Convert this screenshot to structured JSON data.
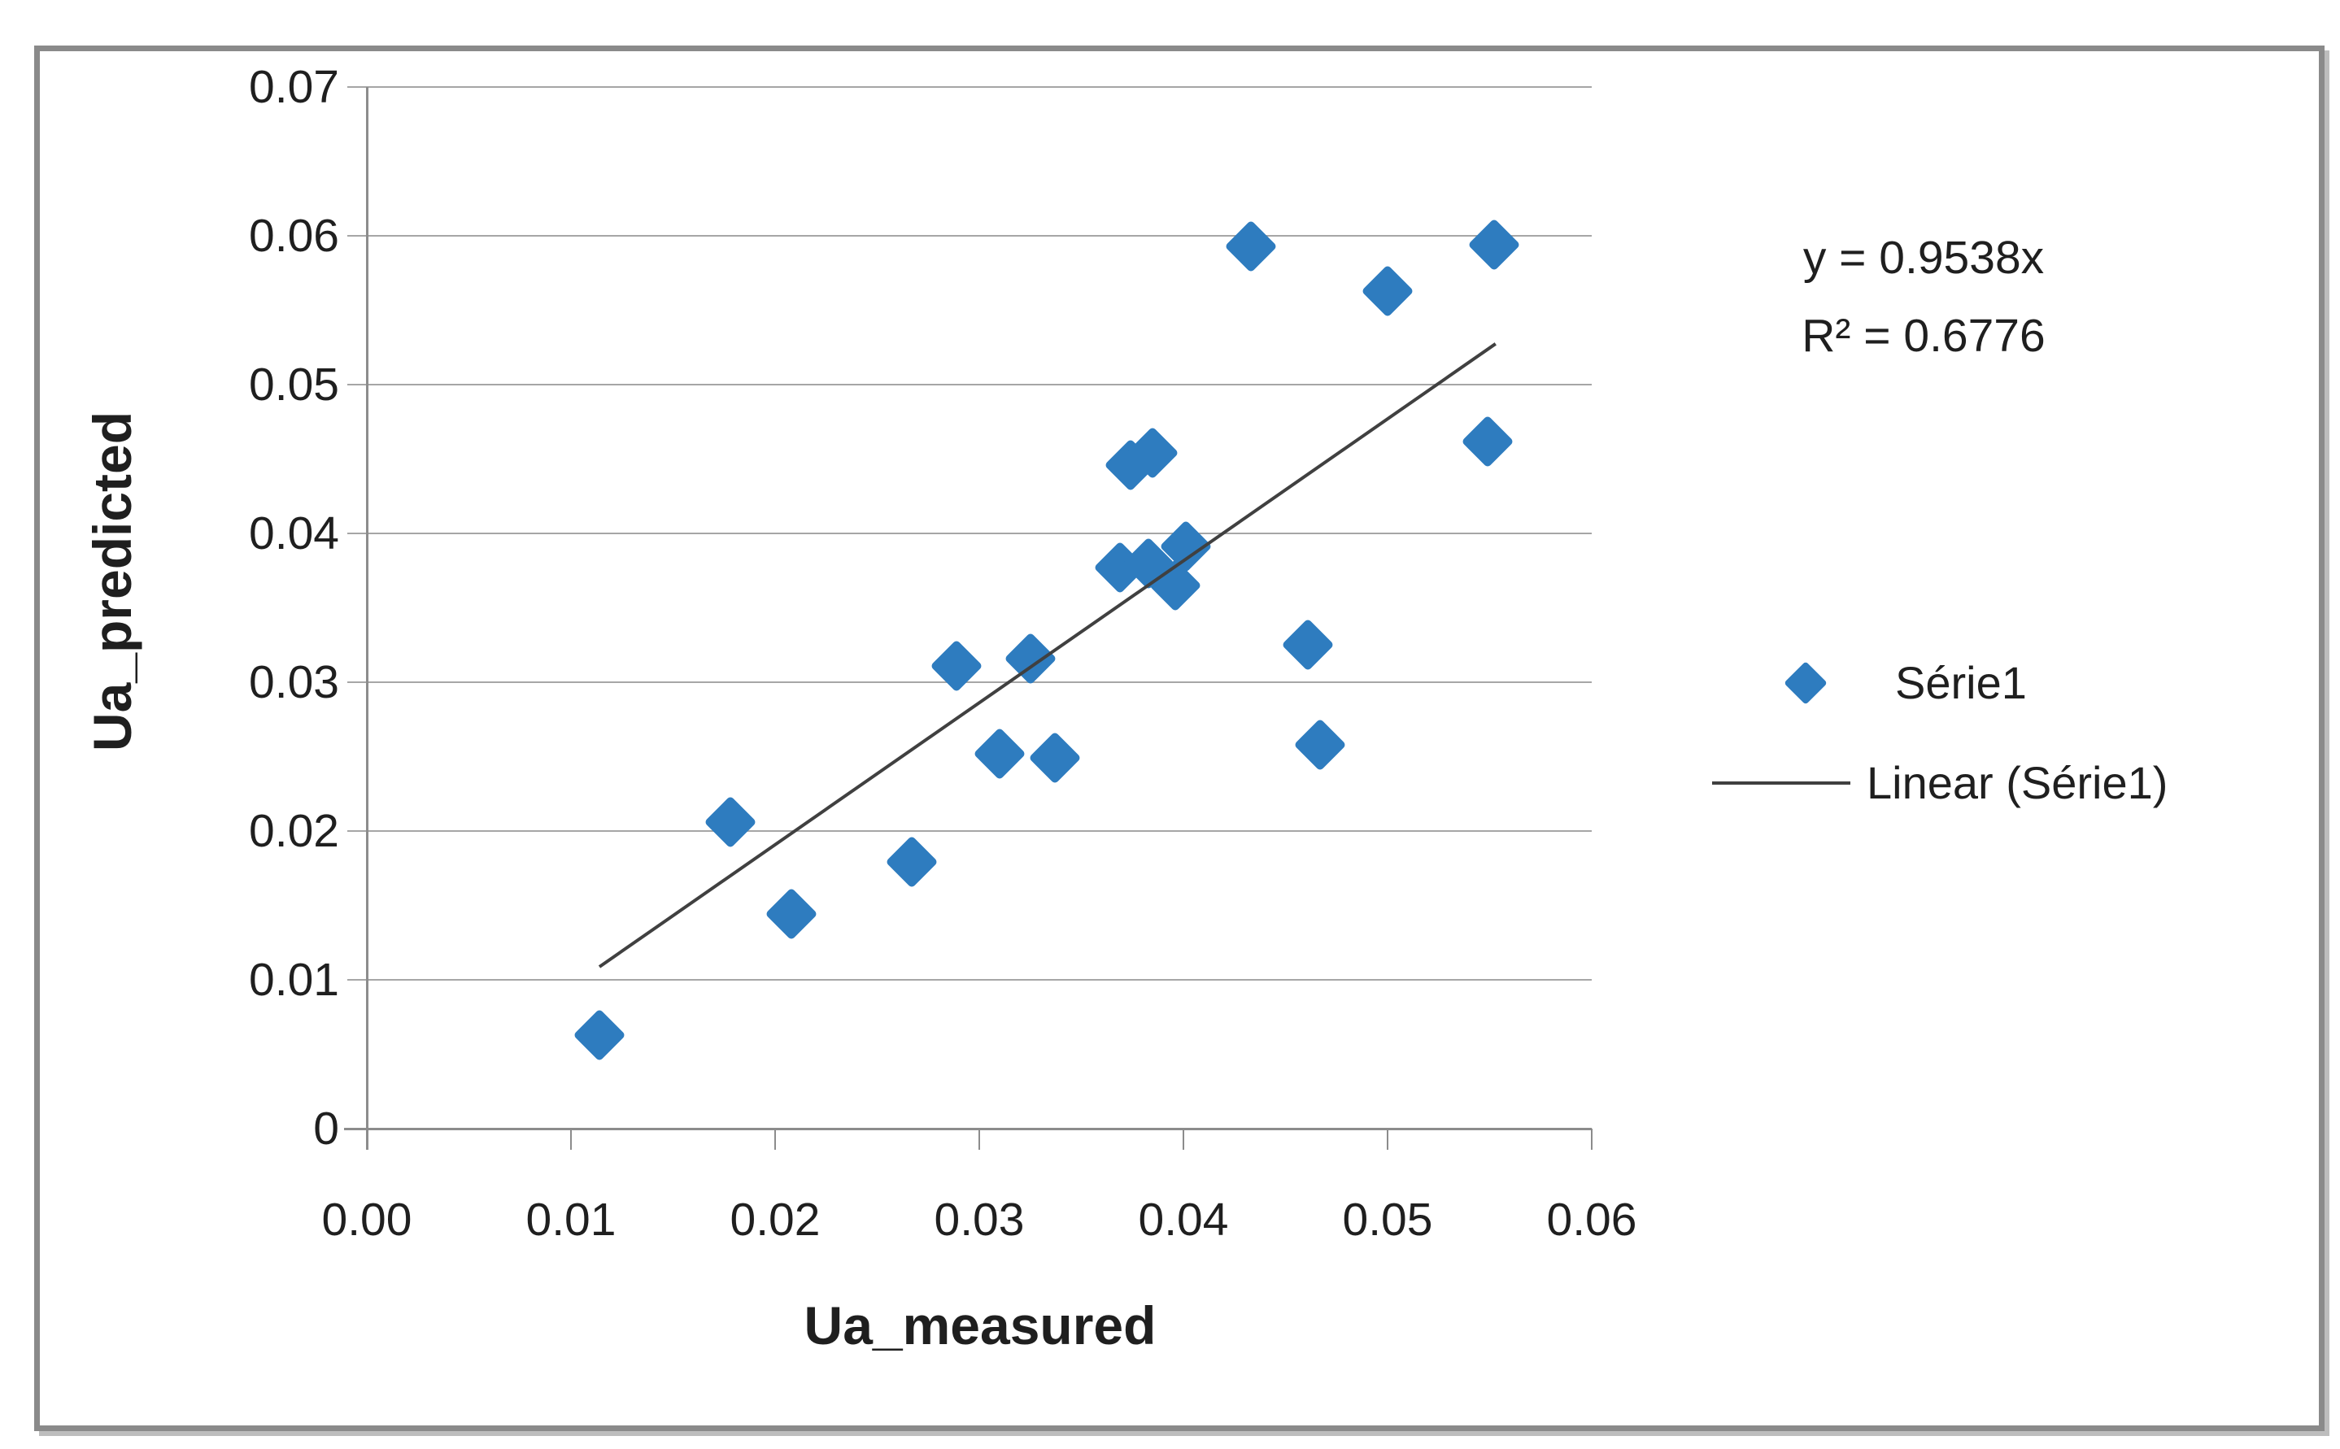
{
  "chart_data": {
    "type": "scatter",
    "title": "",
    "xlabel": "Ua_measured",
    "ylabel": "Ua_predicted",
    "xlim": [
      0,
      0.06
    ],
    "ylim": [
      0,
      0.07
    ],
    "x_tick_labels": [
      "0.00",
      "0.01",
      "0.02",
      "0.03",
      "0.04",
      "0.05",
      "0.06"
    ],
    "y_tick_labels": [
      "0",
      "0.01",
      "0.02",
      "0.03",
      "0.04",
      "0.05",
      "0.06",
      "0.07"
    ],
    "grid": "horizontal-only",
    "legend_position": "right",
    "series": [
      {
        "name": "Série1",
        "marker": "diamond",
        "color": "#2e7cbf",
        "points": [
          [
            0.0114,
            0.0063
          ],
          [
            0.0178,
            0.0206
          ],
          [
            0.0208,
            0.0144
          ],
          [
            0.0267,
            0.0179
          ],
          [
            0.0289,
            0.0311
          ],
          [
            0.031,
            0.0252
          ],
          [
            0.0325,
            0.0316
          ],
          [
            0.0337,
            0.0249
          ],
          [
            0.0369,
            0.0377
          ],
          [
            0.0383,
            0.038
          ],
          [
            0.0396,
            0.0365
          ],
          [
            0.0401,
            0.0391
          ],
          [
            0.0374,
            0.0446
          ],
          [
            0.0385,
            0.0454
          ],
          [
            0.0433,
            0.0593
          ],
          [
            0.0461,
            0.0325
          ],
          [
            0.0467,
            0.0258
          ],
          [
            0.05,
            0.0563
          ],
          [
            0.0549,
            0.0462
          ],
          [
            0.0552,
            0.0594
          ]
        ]
      }
    ],
    "trendline": {
      "name": "Linear (Série1)",
      "equation": "y = 0.9538x",
      "r_squared_label": "R² = 0.6776",
      "slope": 0.9538,
      "intercept": 0,
      "x_start": 0.0114,
      "x_end": 0.0553,
      "color": "#404040"
    },
    "legend": {
      "entries": [
        "Série1",
        "Linear (Série1)"
      ]
    },
    "colors": {
      "marker_fill": "#2e7cbf",
      "trendline": "#404040",
      "gridline": "#a6a6a6",
      "axis": "#8c8c8c",
      "text": "#1f1f1f",
      "frame_border": "#8a8a8a"
    }
  }
}
